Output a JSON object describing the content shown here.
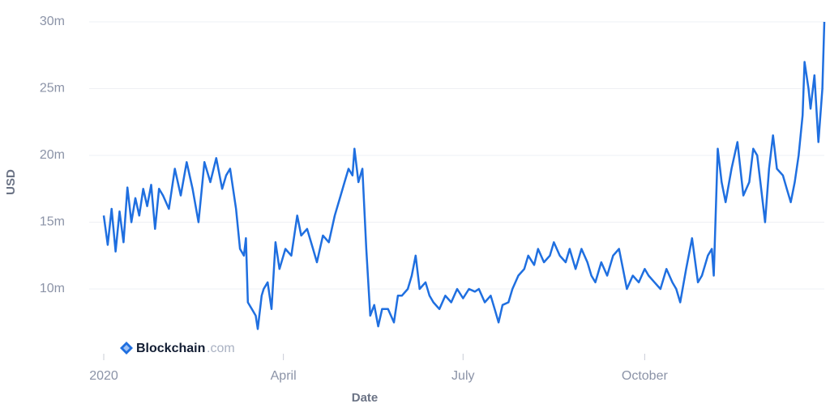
{
  "chart_data": {
    "type": "line",
    "y_label": "USD",
    "x_label": "Date",
    "watermark": {
      "brand": "Blockchain",
      "suffix": ".com"
    },
    "color": "#1f6fe0",
    "grid": true,
    "xlim": [
      0,
      365
    ],
    "xticks": [
      {
        "value": 0,
        "label": "2020"
      },
      {
        "value": 91,
        "label": "April"
      },
      {
        "value": 182,
        "label": "July"
      },
      {
        "value": 274,
        "label": "October"
      }
    ],
    "ylim": [
      6,
      30
    ],
    "yticks": [
      {
        "value": 10,
        "label": "10m"
      },
      {
        "value": 15,
        "label": "15m"
      },
      {
        "value": 20,
        "label": "20m"
      },
      {
        "value": 25,
        "label": "25m"
      },
      {
        "value": 30,
        "label": "30m"
      }
    ],
    "x": [
      0,
      2,
      4,
      6,
      8,
      10,
      12,
      14,
      16,
      18,
      20,
      22,
      24,
      26,
      28,
      30,
      33,
      36,
      39,
      42,
      45,
      48,
      51,
      54,
      57,
      60,
      62,
      64,
      67,
      69,
      71,
      72,
      73,
      75,
      77,
      78,
      80,
      81,
      83,
      85,
      87,
      89,
      92,
      95,
      98,
      100,
      103,
      106,
      108,
      111,
      114,
      117,
      120,
      122,
      124,
      126,
      127,
      129,
      131,
      133,
      135,
      137,
      139,
      141,
      144,
      147,
      149,
      151,
      154,
      156,
      158,
      160,
      163,
      165,
      167,
      170,
      173,
      176,
      179,
      182,
      185,
      188,
      190,
      193,
      196,
      198,
      200,
      202,
      205,
      207,
      210,
      213,
      215,
      218,
      220,
      223,
      226,
      228,
      231,
      234,
      236,
      239,
      242,
      245,
      247,
      249,
      252,
      255,
      258,
      261,
      263,
      265,
      268,
      271,
      274,
      276,
      279,
      282,
      285,
      288,
      290,
      292,
      295,
      298,
      301,
      303,
      306,
      308,
      309,
      311,
      313,
      315,
      318,
      321,
      324,
      327,
      329,
      331,
      333,
      335,
      337,
      339,
      341,
      344,
      346,
      348,
      350,
      352,
      354,
      355,
      357,
      358,
      360,
      362,
      364,
      365
    ],
    "values": [
      15.5,
      13.3,
      16,
      12.8,
      15.8,
      13.5,
      17.6,
      15,
      16.8,
      15.5,
      17.5,
      16.2,
      17.8,
      14.5,
      17.5,
      17,
      16,
      19,
      17,
      19.5,
      17.5,
      15,
      19.5,
      18,
      19.8,
      17.5,
      18.5,
      19,
      16,
      13,
      12.5,
      13.8,
      9,
      8.5,
      8,
      7,
      9.5,
      10,
      10.5,
      8.5,
      13.5,
      11.5,
      13,
      12.5,
      15.5,
      14,
      14.5,
      13,
      12,
      14,
      13.5,
      15.5,
      17,
      18,
      19,
      18.5,
      20.5,
      18,
      19,
      13,
      8,
      8.8,
      7.2,
      8.5,
      8.5,
      7.5,
      9.5,
      9.5,
      10,
      11,
      12.5,
      10,
      10.5,
      9.5,
      9,
      8.5,
      9.5,
      9,
      10,
      9.3,
      10,
      9.8,
      10,
      9,
      9.5,
      8.5,
      7.5,
      8.8,
      9,
      10,
      11,
      11.5,
      12.5,
      11.8,
      13,
      12,
      12.5,
      13.5,
      12.5,
      12,
      13,
      11.5,
      13,
      12,
      11,
      10.5,
      12,
      11,
      12.5,
      13,
      11.5,
      10,
      11,
      10.5,
      11.5,
      11,
      10.5,
      10,
      11.5,
      10.5,
      10,
      9,
      11.5,
      13.8,
      10.5,
      11,
      12.5,
      13,
      11,
      20.5,
      18,
      16.5,
      19,
      21,
      17,
      18,
      20.5,
      20,
      17.5,
      15,
      19,
      21.5,
      19,
      18.5,
      17.5,
      16.5,
      18,
      20,
      23,
      27,
      25,
      23.5,
      26,
      21,
      25,
      30
    ]
  }
}
